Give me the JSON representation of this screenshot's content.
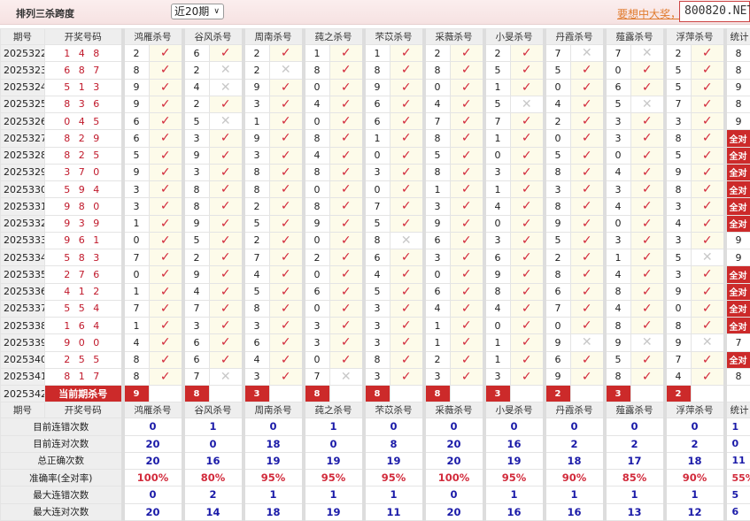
{
  "header": {
    "title": "排列三杀跨度",
    "period_select": "近20期",
    "promo_link": "要想中大奖，",
    "site": "800820.NET"
  },
  "columns": {
    "period": "期号",
    "draw": "开奖号码",
    "stats": "统计",
    "experts": [
      "鸿雁杀号",
      "谷风杀号",
      "周南杀号",
      "莼之杀号",
      "芣苡杀号",
      "采薇杀号",
      "小旻杀号",
      "丹霞杀号",
      "薤露杀号",
      "浮萍杀号"
    ]
  },
  "marks": {
    "ok": "✓",
    "no": "✕"
  },
  "rows": [
    {
      "period": "2025322",
      "draw": "1 4 8",
      "kills": [
        [
          2,
          1
        ],
        [
          6,
          1
        ],
        [
          2,
          1
        ],
        [
          1,
          1
        ],
        [
          1,
          1
        ],
        [
          2,
          1
        ],
        [
          2,
          1
        ],
        [
          7,
          0
        ],
        [
          7,
          0
        ],
        [
          2,
          1
        ]
      ],
      "stat": "8"
    },
    {
      "period": "2025323",
      "draw": "6 8 7",
      "kills": [
        [
          8,
          1
        ],
        [
          2,
          0
        ],
        [
          2,
          0
        ],
        [
          8,
          1
        ],
        [
          8,
          1
        ],
        [
          8,
          1
        ],
        [
          5,
          1
        ],
        [
          5,
          1
        ],
        [
          0,
          1
        ],
        [
          5,
          1
        ]
      ],
      "stat": "8"
    },
    {
      "period": "2025324",
      "draw": "5 1 3",
      "kills": [
        [
          9,
          1
        ],
        [
          4,
          0
        ],
        [
          9,
          1
        ],
        [
          0,
          1
        ],
        [
          9,
          1
        ],
        [
          0,
          1
        ],
        [
          1,
          1
        ],
        [
          0,
          1
        ],
        [
          6,
          1
        ],
        [
          5,
          1
        ]
      ],
      "stat": "9"
    },
    {
      "period": "2025325",
      "draw": "8 3 6",
      "kills": [
        [
          9,
          1
        ],
        [
          2,
          1
        ],
        [
          3,
          1
        ],
        [
          4,
          1
        ],
        [
          6,
          1
        ],
        [
          4,
          1
        ],
        [
          5,
          0
        ],
        [
          4,
          1
        ],
        [
          5,
          0
        ],
        [
          7,
          1
        ]
      ],
      "stat": "8"
    },
    {
      "period": "2025326",
      "draw": "0 4 5",
      "kills": [
        [
          6,
          1
        ],
        [
          5,
          0
        ],
        [
          1,
          1
        ],
        [
          0,
          1
        ],
        [
          6,
          1
        ],
        [
          7,
          1
        ],
        [
          7,
          1
        ],
        [
          2,
          1
        ],
        [
          3,
          1
        ],
        [
          3,
          1
        ]
      ],
      "stat": "9"
    },
    {
      "period": "2025327",
      "draw": "8 2 9",
      "kills": [
        [
          6,
          1
        ],
        [
          3,
          1
        ],
        [
          9,
          1
        ],
        [
          8,
          1
        ],
        [
          1,
          1
        ],
        [
          8,
          1
        ],
        [
          1,
          1
        ],
        [
          0,
          1
        ],
        [
          3,
          1
        ],
        [
          8,
          1
        ]
      ],
      "stat": "全对"
    },
    {
      "period": "2025328",
      "draw": "8 2 5",
      "kills": [
        [
          5,
          1
        ],
        [
          9,
          1
        ],
        [
          3,
          1
        ],
        [
          4,
          1
        ],
        [
          0,
          1
        ],
        [
          5,
          1
        ],
        [
          0,
          1
        ],
        [
          5,
          1
        ],
        [
          0,
          1
        ],
        [
          5,
          1
        ]
      ],
      "stat": "全对"
    },
    {
      "period": "2025329",
      "draw": "3 7 0",
      "kills": [
        [
          9,
          1
        ],
        [
          3,
          1
        ],
        [
          8,
          1
        ],
        [
          8,
          1
        ],
        [
          3,
          1
        ],
        [
          8,
          1
        ],
        [
          3,
          1
        ],
        [
          8,
          1
        ],
        [
          4,
          1
        ],
        [
          9,
          1
        ]
      ],
      "stat": "全对"
    },
    {
      "period": "2025330",
      "draw": "5 9 4",
      "kills": [
        [
          3,
          1
        ],
        [
          8,
          1
        ],
        [
          8,
          1
        ],
        [
          0,
          1
        ],
        [
          0,
          1
        ],
        [
          1,
          1
        ],
        [
          1,
          1
        ],
        [
          3,
          1
        ],
        [
          3,
          1
        ],
        [
          8,
          1
        ]
      ],
      "stat": "全对"
    },
    {
      "period": "2025331",
      "draw": "9 8 0",
      "kills": [
        [
          3,
          1
        ],
        [
          8,
          1
        ],
        [
          2,
          1
        ],
        [
          8,
          1
        ],
        [
          7,
          1
        ],
        [
          3,
          1
        ],
        [
          4,
          1
        ],
        [
          8,
          1
        ],
        [
          4,
          1
        ],
        [
          3,
          1
        ]
      ],
      "stat": "全对"
    },
    {
      "period": "2025332",
      "draw": "9 3 9",
      "kills": [
        [
          1,
          1
        ],
        [
          9,
          1
        ],
        [
          5,
          1
        ],
        [
          9,
          1
        ],
        [
          5,
          1
        ],
        [
          9,
          1
        ],
        [
          0,
          1
        ],
        [
          9,
          1
        ],
        [
          0,
          1
        ],
        [
          4,
          1
        ]
      ],
      "stat": "全对"
    },
    {
      "period": "2025333",
      "draw": "9 6 1",
      "kills": [
        [
          0,
          1
        ],
        [
          5,
          1
        ],
        [
          2,
          1
        ],
        [
          0,
          1
        ],
        [
          8,
          0
        ],
        [
          6,
          1
        ],
        [
          3,
          1
        ],
        [
          5,
          1
        ],
        [
          3,
          1
        ],
        [
          3,
          1
        ]
      ],
      "stat": "9"
    },
    {
      "period": "2025334",
      "draw": "5 8 3",
      "kills": [
        [
          7,
          1
        ],
        [
          2,
          1
        ],
        [
          7,
          1
        ],
        [
          2,
          1
        ],
        [
          6,
          1
        ],
        [
          3,
          1
        ],
        [
          6,
          1
        ],
        [
          2,
          1
        ],
        [
          1,
          1
        ],
        [
          5,
          0
        ]
      ],
      "stat": "9"
    },
    {
      "period": "2025335",
      "draw": "2 7 6",
      "kills": [
        [
          0,
          1
        ],
        [
          9,
          1
        ],
        [
          4,
          1
        ],
        [
          0,
          1
        ],
        [
          4,
          1
        ],
        [
          0,
          1
        ],
        [
          9,
          1
        ],
        [
          8,
          1
        ],
        [
          4,
          1
        ],
        [
          3,
          1
        ]
      ],
      "stat": "全对"
    },
    {
      "period": "2025336",
      "draw": "4 1 2",
      "kills": [
        [
          1,
          1
        ],
        [
          4,
          1
        ],
        [
          5,
          1
        ],
        [
          6,
          1
        ],
        [
          5,
          1
        ],
        [
          6,
          1
        ],
        [
          8,
          1
        ],
        [
          6,
          1
        ],
        [
          8,
          1
        ],
        [
          9,
          1
        ]
      ],
      "stat": "全对"
    },
    {
      "period": "2025337",
      "draw": "5 5 4",
      "kills": [
        [
          7,
          1
        ],
        [
          7,
          1
        ],
        [
          8,
          1
        ],
        [
          0,
          1
        ],
        [
          3,
          1
        ],
        [
          4,
          1
        ],
        [
          4,
          1
        ],
        [
          7,
          1
        ],
        [
          4,
          1
        ],
        [
          0,
          1
        ]
      ],
      "stat": "全对"
    },
    {
      "period": "2025338",
      "draw": "1 6 4",
      "kills": [
        [
          1,
          1
        ],
        [
          3,
          1
        ],
        [
          3,
          1
        ],
        [
          3,
          1
        ],
        [
          3,
          1
        ],
        [
          1,
          1
        ],
        [
          0,
          1
        ],
        [
          0,
          1
        ],
        [
          8,
          1
        ],
        [
          8,
          1
        ]
      ],
      "stat": "全对"
    },
    {
      "period": "2025339",
      "draw": "9 0 0",
      "kills": [
        [
          4,
          1
        ],
        [
          6,
          1
        ],
        [
          6,
          1
        ],
        [
          3,
          1
        ],
        [
          3,
          1
        ],
        [
          1,
          1
        ],
        [
          1,
          1
        ],
        [
          9,
          0
        ],
        [
          9,
          0
        ],
        [
          9,
          0
        ]
      ],
      "stat": "7"
    },
    {
      "period": "2025340",
      "draw": "2 5 5",
      "kills": [
        [
          8,
          1
        ],
        [
          6,
          1
        ],
        [
          4,
          1
        ],
        [
          0,
          1
        ],
        [
          8,
          1
        ],
        [
          2,
          1
        ],
        [
          1,
          1
        ],
        [
          6,
          1
        ],
        [
          5,
          1
        ],
        [
          7,
          1
        ]
      ],
      "stat": "全对"
    },
    {
      "period": "2025341",
      "draw": "8 1 7",
      "kills": [
        [
          8,
          1
        ],
        [
          7,
          0
        ],
        [
          3,
          1
        ],
        [
          7,
          0
        ],
        [
          3,
          1
        ],
        [
          3,
          1
        ],
        [
          3,
          1
        ],
        [
          9,
          1
        ],
        [
          8,
          1
        ],
        [
          4,
          1
        ]
      ],
      "stat": "8"
    }
  ],
  "current": {
    "period": "2025342",
    "label": "当前期杀号",
    "kills": [
      "9",
      "8",
      "3",
      "8",
      "8",
      "8",
      "3",
      "2",
      "3",
      "2"
    ]
  },
  "stats": [
    {
      "label": "目前连错次数",
      "values": [
        "0",
        "1",
        "0",
        "1",
        "0",
        "0",
        "0",
        "0",
        "0",
        "0"
      ],
      "total": "1"
    },
    {
      "label": "目前连对次数",
      "values": [
        "20",
        "0",
        "18",
        "0",
        "8",
        "20",
        "16",
        "2",
        "2",
        "2"
      ],
      "total": "0"
    },
    {
      "label": "总正确次数",
      "values": [
        "20",
        "16",
        "19",
        "19",
        "19",
        "20",
        "19",
        "18",
        "17",
        "18"
      ],
      "total": "11"
    },
    {
      "label": "准确率(全对率)",
      "values": [
        "100%",
        "80%",
        "95%",
        "95%",
        "95%",
        "100%",
        "95%",
        "90%",
        "85%",
        "90%"
      ],
      "total": "55%",
      "rate": true
    },
    {
      "label": "最大连错次数",
      "values": [
        "0",
        "2",
        "1",
        "1",
        "1",
        "0",
        "1",
        "1",
        "1",
        "1"
      ],
      "total": "5"
    },
    {
      "label": "最大连对次数",
      "values": [
        "20",
        "14",
        "18",
        "19",
        "11",
        "20",
        "16",
        "16",
        "13",
        "12"
      ],
      "total": "6"
    }
  ]
}
